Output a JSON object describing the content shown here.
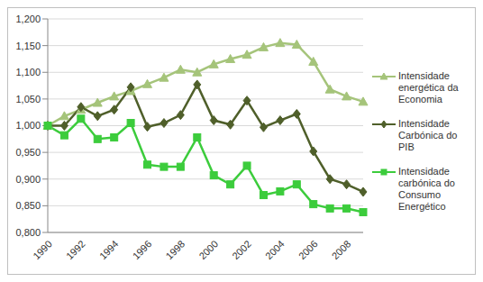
{
  "chart_data": {
    "type": "line",
    "categories": [
      "1990",
      null,
      "1992",
      null,
      "1994",
      null,
      "1996",
      null,
      "1998",
      null,
      "2000",
      null,
      "2002",
      null,
      "2004",
      null,
      "2006",
      null,
      "2008",
      null
    ],
    "series": [
      {
        "name": "Intensidade energética da Economia",
        "color": "#a5c47a",
        "marker": "triangle",
        "values": [
          1.0,
          1.018,
          1.03,
          1.043,
          1.055,
          1.065,
          1.078,
          1.09,
          1.105,
          1.1,
          1.115,
          1.125,
          1.133,
          1.147,
          1.155,
          1.152,
          1.12,
          1.068,
          1.055,
          1.045
        ]
      },
      {
        "name": "Intensidade Carbónica do PIB",
        "color": "#4f5f2a",
        "marker": "diamond",
        "values": [
          1.0,
          1.0,
          1.035,
          1.018,
          1.03,
          1.072,
          0.998,
          1.005,
          1.02,
          1.077,
          1.01,
          1.002,
          1.047,
          0.997,
          1.01,
          1.022,
          0.952,
          0.9,
          0.89,
          0.876
        ]
      },
      {
        "name": "Intensidade carbónica do Consumo Energético",
        "color": "#3ccc3c",
        "marker": "square",
        "values": [
          1.0,
          0.982,
          1.013,
          0.975,
          0.978,
          1.005,
          0.927,
          0.923,
          0.923,
          0.978,
          0.907,
          0.89,
          0.925,
          0.87,
          0.877,
          0.89,
          0.853,
          0.845,
          0.845,
          0.838
        ]
      }
    ],
    "ylim": [
      0.8,
      1.2
    ],
    "yticks": [
      {
        "value": 0.8,
        "label": "0,800"
      },
      {
        "value": 0.85,
        "label": "0,850"
      },
      {
        "value": 0.9,
        "label": "0,900"
      },
      {
        "value": 0.95,
        "label": "0,950"
      },
      {
        "value": 1.0,
        "label": "1,000"
      },
      {
        "value": 1.05,
        "label": "1,050"
      },
      {
        "value": 1.1,
        "label": "1,100"
      },
      {
        "value": 1.15,
        "label": "1,150"
      },
      {
        "value": 1.2,
        "label": "1,200"
      }
    ],
    "grid": true,
    "legend": "right"
  }
}
